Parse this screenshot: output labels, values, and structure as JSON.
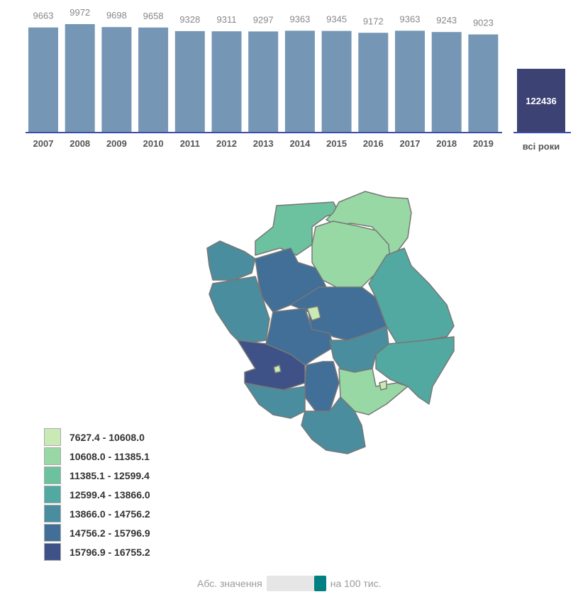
{
  "chart_data": [
    {
      "type": "bar",
      "categories": [
        "2007",
        "2008",
        "2009",
        "2010",
        "2011",
        "2012",
        "2013",
        "2014",
        "2015",
        "2016",
        "2017",
        "2018",
        "2019"
      ],
      "values": [
        9663,
        9972,
        9698,
        9658,
        9328,
        9311,
        9297,
        9363,
        9345,
        9172,
        9363,
        9243,
        9023
      ],
      "total": {
        "label": "всі роки",
        "value": 122436
      },
      "bar_color": "#7596b5",
      "total_color": "#3d4275",
      "axis_color": "#3c4dac"
    },
    {
      "type": "choropleth",
      "legend": [
        {
          "label": "7627.4 - 10608.0",
          "color": "#c9eab5"
        },
        {
          "label": "10608.0 - 11385.1",
          "color": "#98d8a4"
        },
        {
          "label": "11385.1 - 12599.4",
          "color": "#6cc29e"
        },
        {
          "label": "12599.4 - 13866.0",
          "color": "#52a9a1"
        },
        {
          "label": "13866.0 - 14756.2",
          "color": "#4a8d9e"
        },
        {
          "label": "14756.2 - 15796.9",
          "color": "#416f98"
        },
        {
          "label": "15796.9 - 16755.2",
          "color": "#3e5287"
        }
      ]
    }
  ],
  "toggle": {
    "left_label": "Абс. значення",
    "right_label": "на 100 тис."
  }
}
